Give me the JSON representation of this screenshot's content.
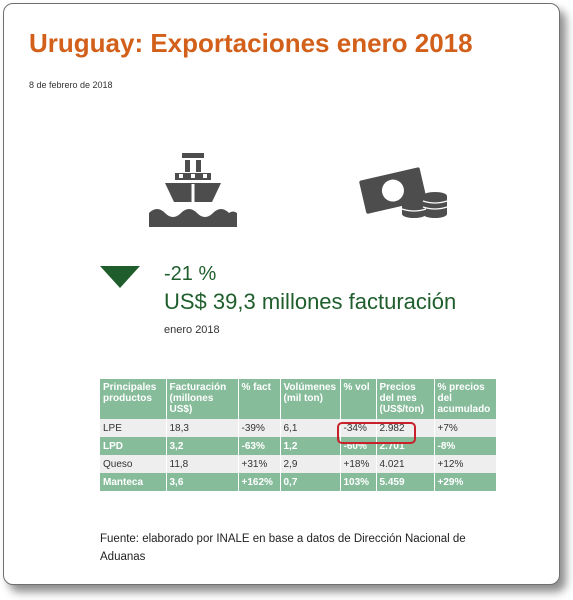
{
  "header": {
    "title": "Uruguay: Exportaciones enero 2018",
    "date": "8 de febrero de 2018"
  },
  "icons": [
    "ship-icon",
    "money-coins-icon",
    "down-triangle-icon"
  ],
  "colors": {
    "title": "#d2601a",
    "headline": "#1f5e2c",
    "table_header": "#87bc9b",
    "highlight": "#c8212b"
  },
  "highlight": {
    "change_pct": "-21 %",
    "revenue": "US$ 39,3 millones facturación",
    "period": "enero 2018"
  },
  "table": {
    "headers": [
      "Principales productos",
      "Facturación (millones US$)",
      "% fact",
      "Volúmenes (mil ton)",
      "% vol",
      "Precios del mes (US$/ton)",
      "% precios del acumulado"
    ],
    "rows": [
      [
        "LPE",
        "18,3",
        "-39%",
        "6,1",
        "-34%",
        "2.982",
        "+7%"
      ],
      [
        "LPD",
        "3,2",
        "-63%",
        "1,2",
        "-60%",
        "2.701",
        "-8%"
      ],
      [
        "Queso",
        "11,8",
        "+31%",
        "2,9",
        "+18%",
        "4.021",
        "+12%"
      ],
      [
        "Manteca",
        "3,6",
        "+162%",
        "0,7",
        "103%",
        "5.459",
        "+29%"
      ]
    ]
  },
  "source": "Fuente: elaborado por INALE en base a datos de Dirección Nacional de Aduanas"
}
